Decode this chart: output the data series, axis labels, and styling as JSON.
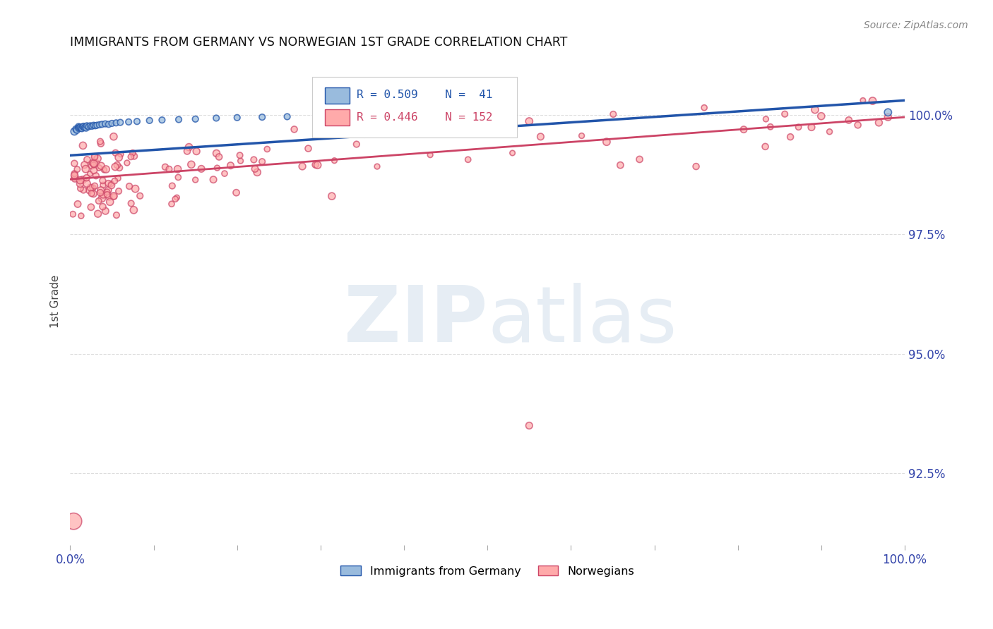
{
  "title": "IMMIGRANTS FROM GERMANY VS NORWEGIAN 1ST GRADE CORRELATION CHART",
  "source_text": "Source: ZipAtlas.com",
  "ylabel": "1st Grade",
  "ytick_labels": [
    "100.0%",
    "97.5%",
    "95.0%",
    "92.5%"
  ],
  "ytick_values": [
    1.0,
    0.975,
    0.95,
    0.925
  ],
  "xlim": [
    0.0,
    1.0
  ],
  "ylim": [
    0.91,
    1.012
  ],
  "blue_color": "#99BBDD",
  "pink_color": "#FFAAAA",
  "trendline_blue_color": "#2255AA",
  "trendline_pink_color": "#CC4466",
  "background_color": "#FFFFFF",
  "blue_trend_x": [
    0.0,
    1.0
  ],
  "blue_trend_y": [
    0.9915,
    1.003
  ],
  "pink_trend_x": [
    0.0,
    1.0
  ],
  "pink_trend_y": [
    0.9865,
    0.9995
  ]
}
